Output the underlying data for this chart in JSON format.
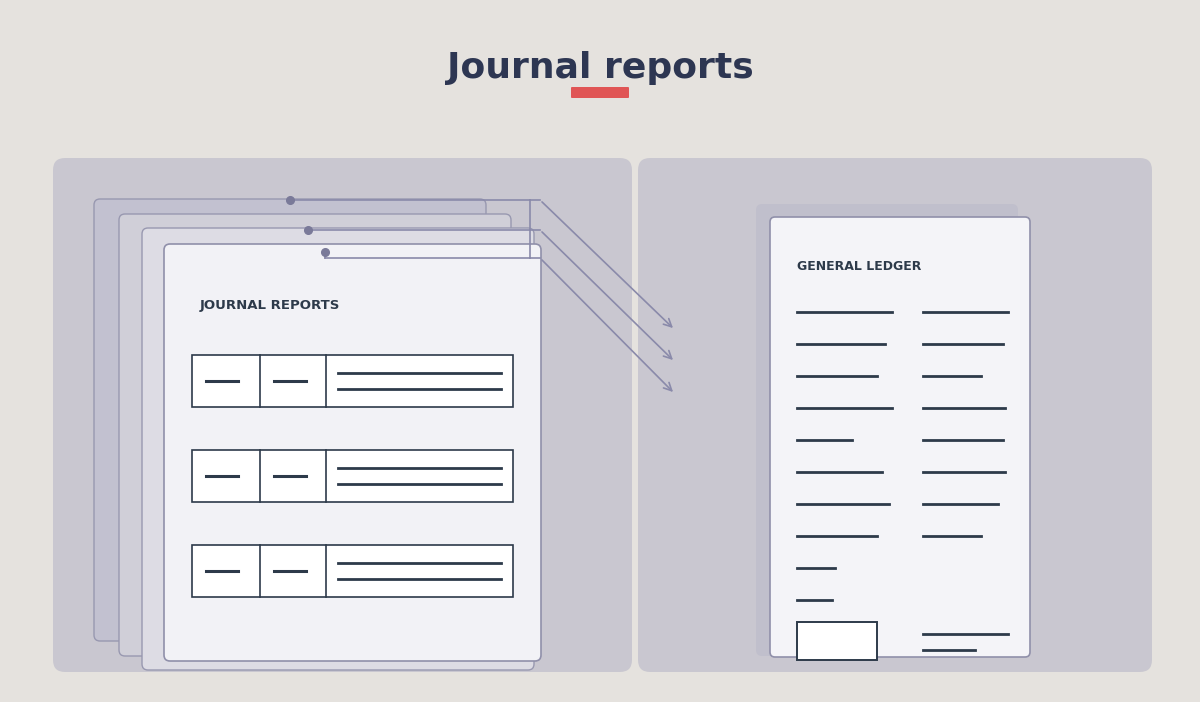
{
  "bg_color": "#e5e2de",
  "title": "Journal reports",
  "title_color": "#2d3652",
  "title_fontsize": 26,
  "accent_color": "#e05555",
  "doc_line_color": "#2d3a4a",
  "panel_color": "#c5c3ce",
  "line_connector_color": "#8a8aaa",
  "dot_color": "#7a7a99",
  "journal_label": "JOURNAL REPORTS",
  "ledger_label": "GENERAL LEDGER",
  "sheet_back1_color": "#c2c1d0",
  "sheet_back2_color": "#d0cfd8",
  "sheet_back3_color": "#dddce4",
  "sheet_front_color": "#f2f2f6",
  "gl_shadow_color": "#c0bfcc",
  "gl_front_color": "#f4f4f8"
}
